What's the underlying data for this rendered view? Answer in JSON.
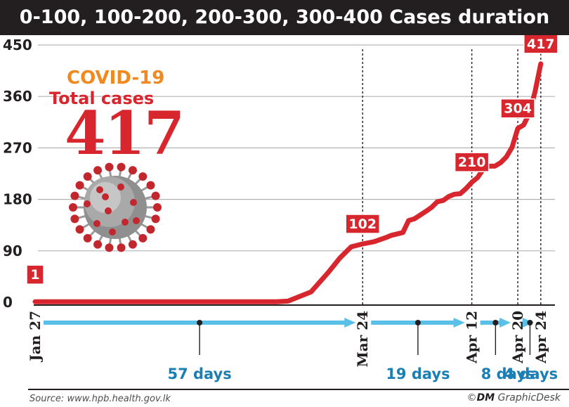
{
  "title": "0-100, 100-200, 200-300, 300-400 Cases duration",
  "infobox": {
    "heading": "COVID-19",
    "subheading": "Total cases",
    "total": "417",
    "virus_icon": "coronavirus-icon"
  },
  "footer": {
    "source": "Source: www.hpb.health.gov.lk",
    "credit_symbol": "©",
    "credit_brand": "DM",
    "credit_desk": "GraphicDesk"
  },
  "colors": {
    "line": "#d7262e",
    "arrow": "#5bc0e8",
    "days_text": "#1a7fb5",
    "title_bg": "#231f20",
    "covid_orange": "#f0891f"
  },
  "chart_data": {
    "type": "line",
    "title": "0-100, 100-200, 200-300, 300-400 Cases duration",
    "xlabel": "",
    "ylabel": "",
    "ylim": [
      0,
      450
    ],
    "yticks": [
      0,
      90,
      180,
      270,
      360,
      450
    ],
    "ytick_labels": [
      "0",
      "90",
      "180",
      "270",
      "360",
      "450"
    ],
    "x_start": "Jan 27",
    "x_end": "Apr 25",
    "grid": true,
    "series": [
      {
        "values": [
          {
            "x": "Jan 27",
            "y": 1
          },
          {
            "x": "Mar 9",
            "y": 1
          },
          {
            "x": "Mar 11",
            "y": 2
          },
          {
            "x": "Mar 15",
            "y": 18
          },
          {
            "x": "Mar 18",
            "y": 52
          },
          {
            "x": "Mar 20",
            "y": 77
          },
          {
            "x": "Mar 22",
            "y": 97
          },
          {
            "x": "Mar 24",
            "y": 102
          },
          {
            "x": "Mar 26",
            "y": 106
          },
          {
            "x": "Mar 28",
            "y": 113
          },
          {
            "x": "Mar 29",
            "y": 117
          },
          {
            "x": "Mar 31",
            "y": 122
          },
          {
            "x": "Apr 1",
            "y": 143
          },
          {
            "x": "Apr 2",
            "y": 146
          },
          {
            "x": "Apr 4",
            "y": 159
          },
          {
            "x": "Apr 5",
            "y": 166
          },
          {
            "x": "Apr 6",
            "y": 176
          },
          {
            "x": "Apr 7",
            "y": 178
          },
          {
            "x": "Apr 8",
            "y": 185
          },
          {
            "x": "Apr 9",
            "y": 189
          },
          {
            "x": "Apr 10",
            "y": 190
          },
          {
            "x": "Apr 11",
            "y": 199
          },
          {
            "x": "Apr 12",
            "y": 210
          },
          {
            "x": "Apr 13",
            "y": 218
          },
          {
            "x": "Apr 14",
            "y": 233
          },
          {
            "x": "Apr 15",
            "y": 238
          },
          {
            "x": "Apr 16",
            "y": 238
          },
          {
            "x": "Apr 17",
            "y": 244
          },
          {
            "x": "Apr 18",
            "y": 254
          },
          {
            "x": "Apr 19",
            "y": 271
          },
          {
            "x": "Apr 20",
            "y": 304
          },
          {
            "x": "Apr 21",
            "y": 310
          },
          {
            "x": "Apr 22",
            "y": 330
          },
          {
            "x": "Apr 23",
            "y": 368
          },
          {
            "x": "Apr 24",
            "y": 417
          }
        ]
      }
    ],
    "milestones": [
      {
        "date": "Jan 27",
        "value": "1",
        "label": "Jan 27",
        "marker_line": false
      },
      {
        "date": "Mar 24",
        "value": "102",
        "label": "Mar 24",
        "marker_line": true
      },
      {
        "date": "Apr 12",
        "value": "210",
        "label": "Apr 12",
        "marker_line": true
      },
      {
        "date": "Apr 20",
        "value": "304",
        "label": "Apr 20",
        "marker_line": true
      },
      {
        "date": "Apr 24",
        "value": "417",
        "label": "Apr 24",
        "marker_line": true
      }
    ],
    "durations": [
      {
        "from": "Jan 27",
        "to": "Mar 24",
        "label": "57 days"
      },
      {
        "from": "Mar 24",
        "to": "Apr 12",
        "label": "19 days"
      },
      {
        "from": "Apr 12",
        "to": "Apr 20",
        "label": "8 days"
      },
      {
        "from": "Apr 20",
        "to": "Apr 24",
        "label": "4 days"
      }
    ]
  }
}
